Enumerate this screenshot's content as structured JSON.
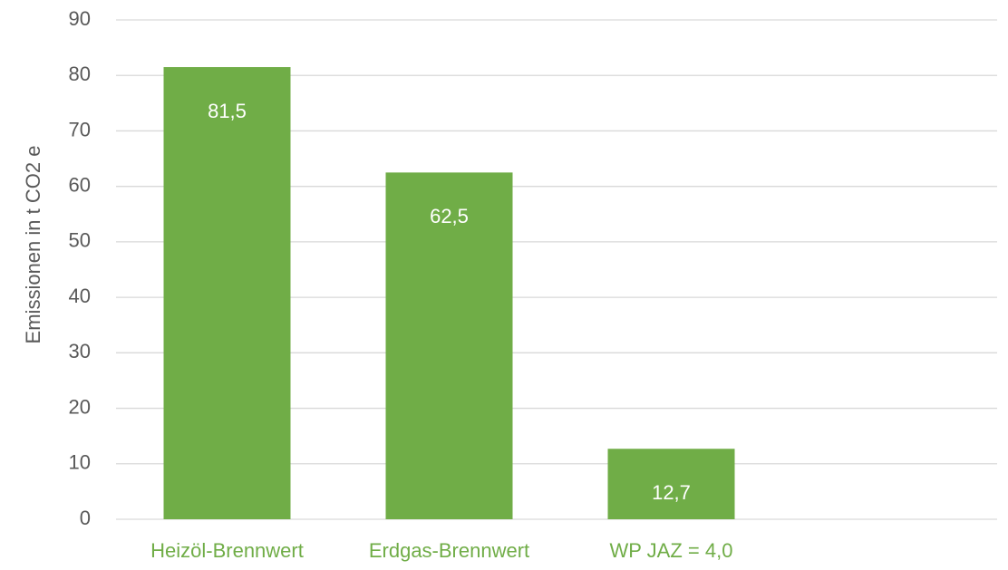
{
  "chart_data": {
    "type": "bar",
    "y_label": "Emissionen in t CO2 e",
    "categories": [
      "Heizöl-Brennwert",
      "Erdgas-Brennwert",
      "WP JAZ = 4,0",
      null
    ],
    "values": [
      81.5,
      62.5,
      12.7,
      null
    ],
    "value_labels": [
      "81,5",
      "62,5",
      "12,7",
      null
    ],
    "color": "#70ad47",
    "category_color": "#70ad47",
    "ylim": [
      0,
      90
    ],
    "yticks": [
      0,
      10,
      20,
      30,
      40,
      50,
      60,
      70,
      80,
      90
    ],
    "grid": true
  }
}
